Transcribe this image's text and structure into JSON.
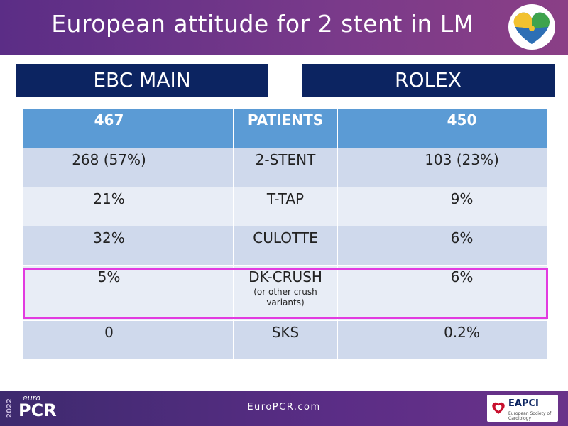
{
  "header": {
    "title": "European attitude for 2 stent in LM"
  },
  "labels": {
    "left": "EBC MAIN",
    "right": "ROLEX"
  },
  "table": {
    "header": [
      "467",
      "",
      "PATIENTS",
      "",
      "450"
    ],
    "rows": [
      {
        "cells": [
          "268 (57%)",
          "",
          "2-STENT",
          "",
          "103 (23%)"
        ]
      },
      {
        "cells": [
          "21%",
          "",
          "T-TAP",
          "",
          "9%"
        ]
      },
      {
        "cells": [
          "32%",
          "",
          "CULOTTE",
          "",
          "6%"
        ]
      },
      {
        "cells": [
          "5%",
          "",
          "DK-CRUSH",
          "",
          "6%"
        ],
        "sub": "(or other crush variants)"
      },
      {
        "cells": [
          "0",
          "",
          "SKS",
          "",
          "0.2%"
        ]
      }
    ]
  },
  "footer": {
    "url": "EuroPCR.com",
    "brand_year": "2022",
    "brand_euro": "euro",
    "brand_pcr": "PCR",
    "eapci_name": "EAPCI",
    "eapci_society": "European Society of Cardiology"
  },
  "colors": {
    "header_purple": "#5b2d86",
    "label_navy": "#0c2461",
    "table_header_blue": "#5b9bd5",
    "row_dark": "#cfd9ec",
    "row_light": "#e8edf6",
    "highlight_magenta": "#e23be0"
  },
  "icons": {
    "top_logo": "puzzle-heart-logo-icon",
    "footer_logo": "esc-heart-icon"
  }
}
